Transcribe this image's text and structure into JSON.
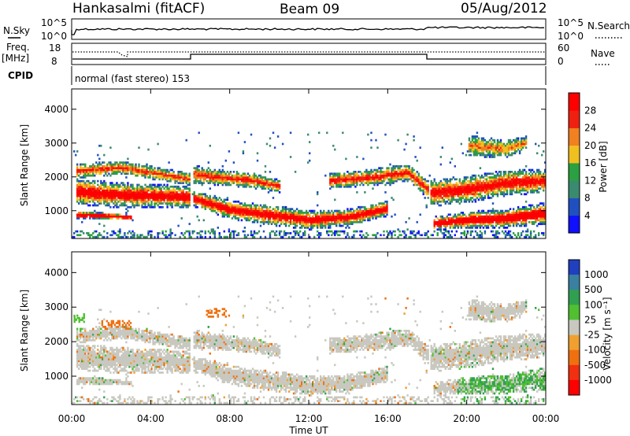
{
  "chart_data": {
    "type": "heatmap",
    "header": {
      "station": "Hankasalmi (fitACF)",
      "beam": "Beam 09",
      "date": "05/Aug/2012"
    },
    "noise_panel": {
      "left_label": "N.Sky",
      "right_label": "N.Search",
      "left_ticks": [
        "10^5",
        "10^0"
      ],
      "right_ticks": [
        "10^5",
        "10^0"
      ]
    },
    "freq_panel": {
      "left_label_line1": "Freq.",
      "left_label_line2": "[MHz]",
      "left_ticks": [
        "18",
        "8"
      ],
      "right_ticks": [
        "60",
        "0"
      ],
      "right_label": "Nave"
    },
    "cpid_panel": {
      "label": "CPID",
      "value": "normal (fast stereo) 153"
    },
    "x_axis": {
      "label": "Time UT",
      "ticks": [
        "00:00",
        "04:00",
        "08:00",
        "12:00",
        "16:00",
        "20:00",
        "00:00"
      ],
      "range_hours": [
        0,
        24
      ]
    },
    "y_axis": {
      "label": "Slant Range [km]",
      "ticks": [
        "1000",
        "2000",
        "3000",
        "4000"
      ],
      "ylim": [
        180,
        4600
      ]
    },
    "power_scale": {
      "title": "Power [dB]",
      "labels": [
        "4",
        "8",
        "12",
        "16",
        "20",
        "24",
        "28"
      ],
      "colors": [
        "#1010ff",
        "#2050c0",
        "#3a8a70",
        "#2aa040",
        "#f0c020",
        "#f08020",
        "#f02010",
        "#ff0000"
      ]
    },
    "velocity_scale": {
      "title": "Velocity [m s⁻¹]",
      "labels": [
        "1000",
        "500",
        "100",
        "25",
        "-25",
        "-100",
        "-500",
        "-1000"
      ],
      "colors": [
        "#2040c0",
        "#3a80a0",
        "#30a050",
        "#50c030",
        "#c8c8c0",
        "#f0a030",
        "#f07010",
        "#f03010",
        "#ff0000"
      ]
    }
  }
}
